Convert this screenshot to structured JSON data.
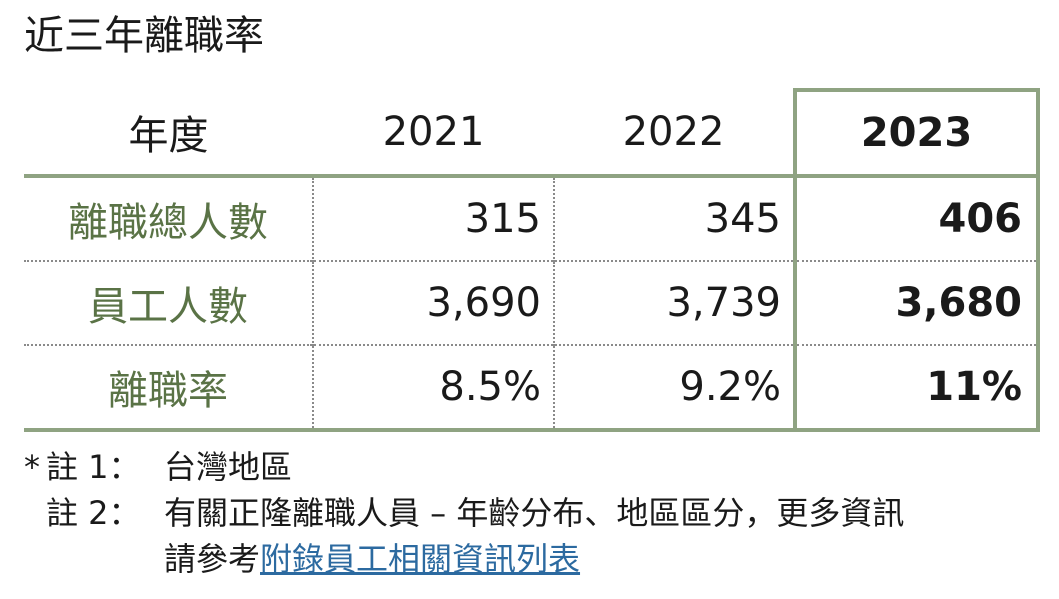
{
  "title": "近三年離職率",
  "table": {
    "header": {
      "label": "年度",
      "years": [
        "2021",
        "2022",
        "2023"
      ]
    },
    "rows": [
      {
        "label": "離職總人數",
        "values": [
          "315",
          "345",
          "406"
        ]
      },
      {
        "label": "員工人數",
        "values": [
          "3,690",
          "3,739",
          "3,680"
        ]
      },
      {
        "label": "離職率",
        "values": [
          "8.5%",
          "9.2%",
          "11%"
        ]
      }
    ],
    "highlight_year": "2023",
    "colors": {
      "border": "#8fa382",
      "label_text": "#5a7346",
      "link": "#2c6aa0"
    }
  },
  "notes": {
    "mark": "*",
    "note1": {
      "id": "註 1：",
      "text": "台灣地區"
    },
    "note2": {
      "id": "註 2：",
      "text_line1": "有關正隆離職人員 – 年齡分布、地區區分，更多資訊",
      "text_line2_prefix": "請參考",
      "link_text": "附錄員工相關資訊列表"
    }
  }
}
